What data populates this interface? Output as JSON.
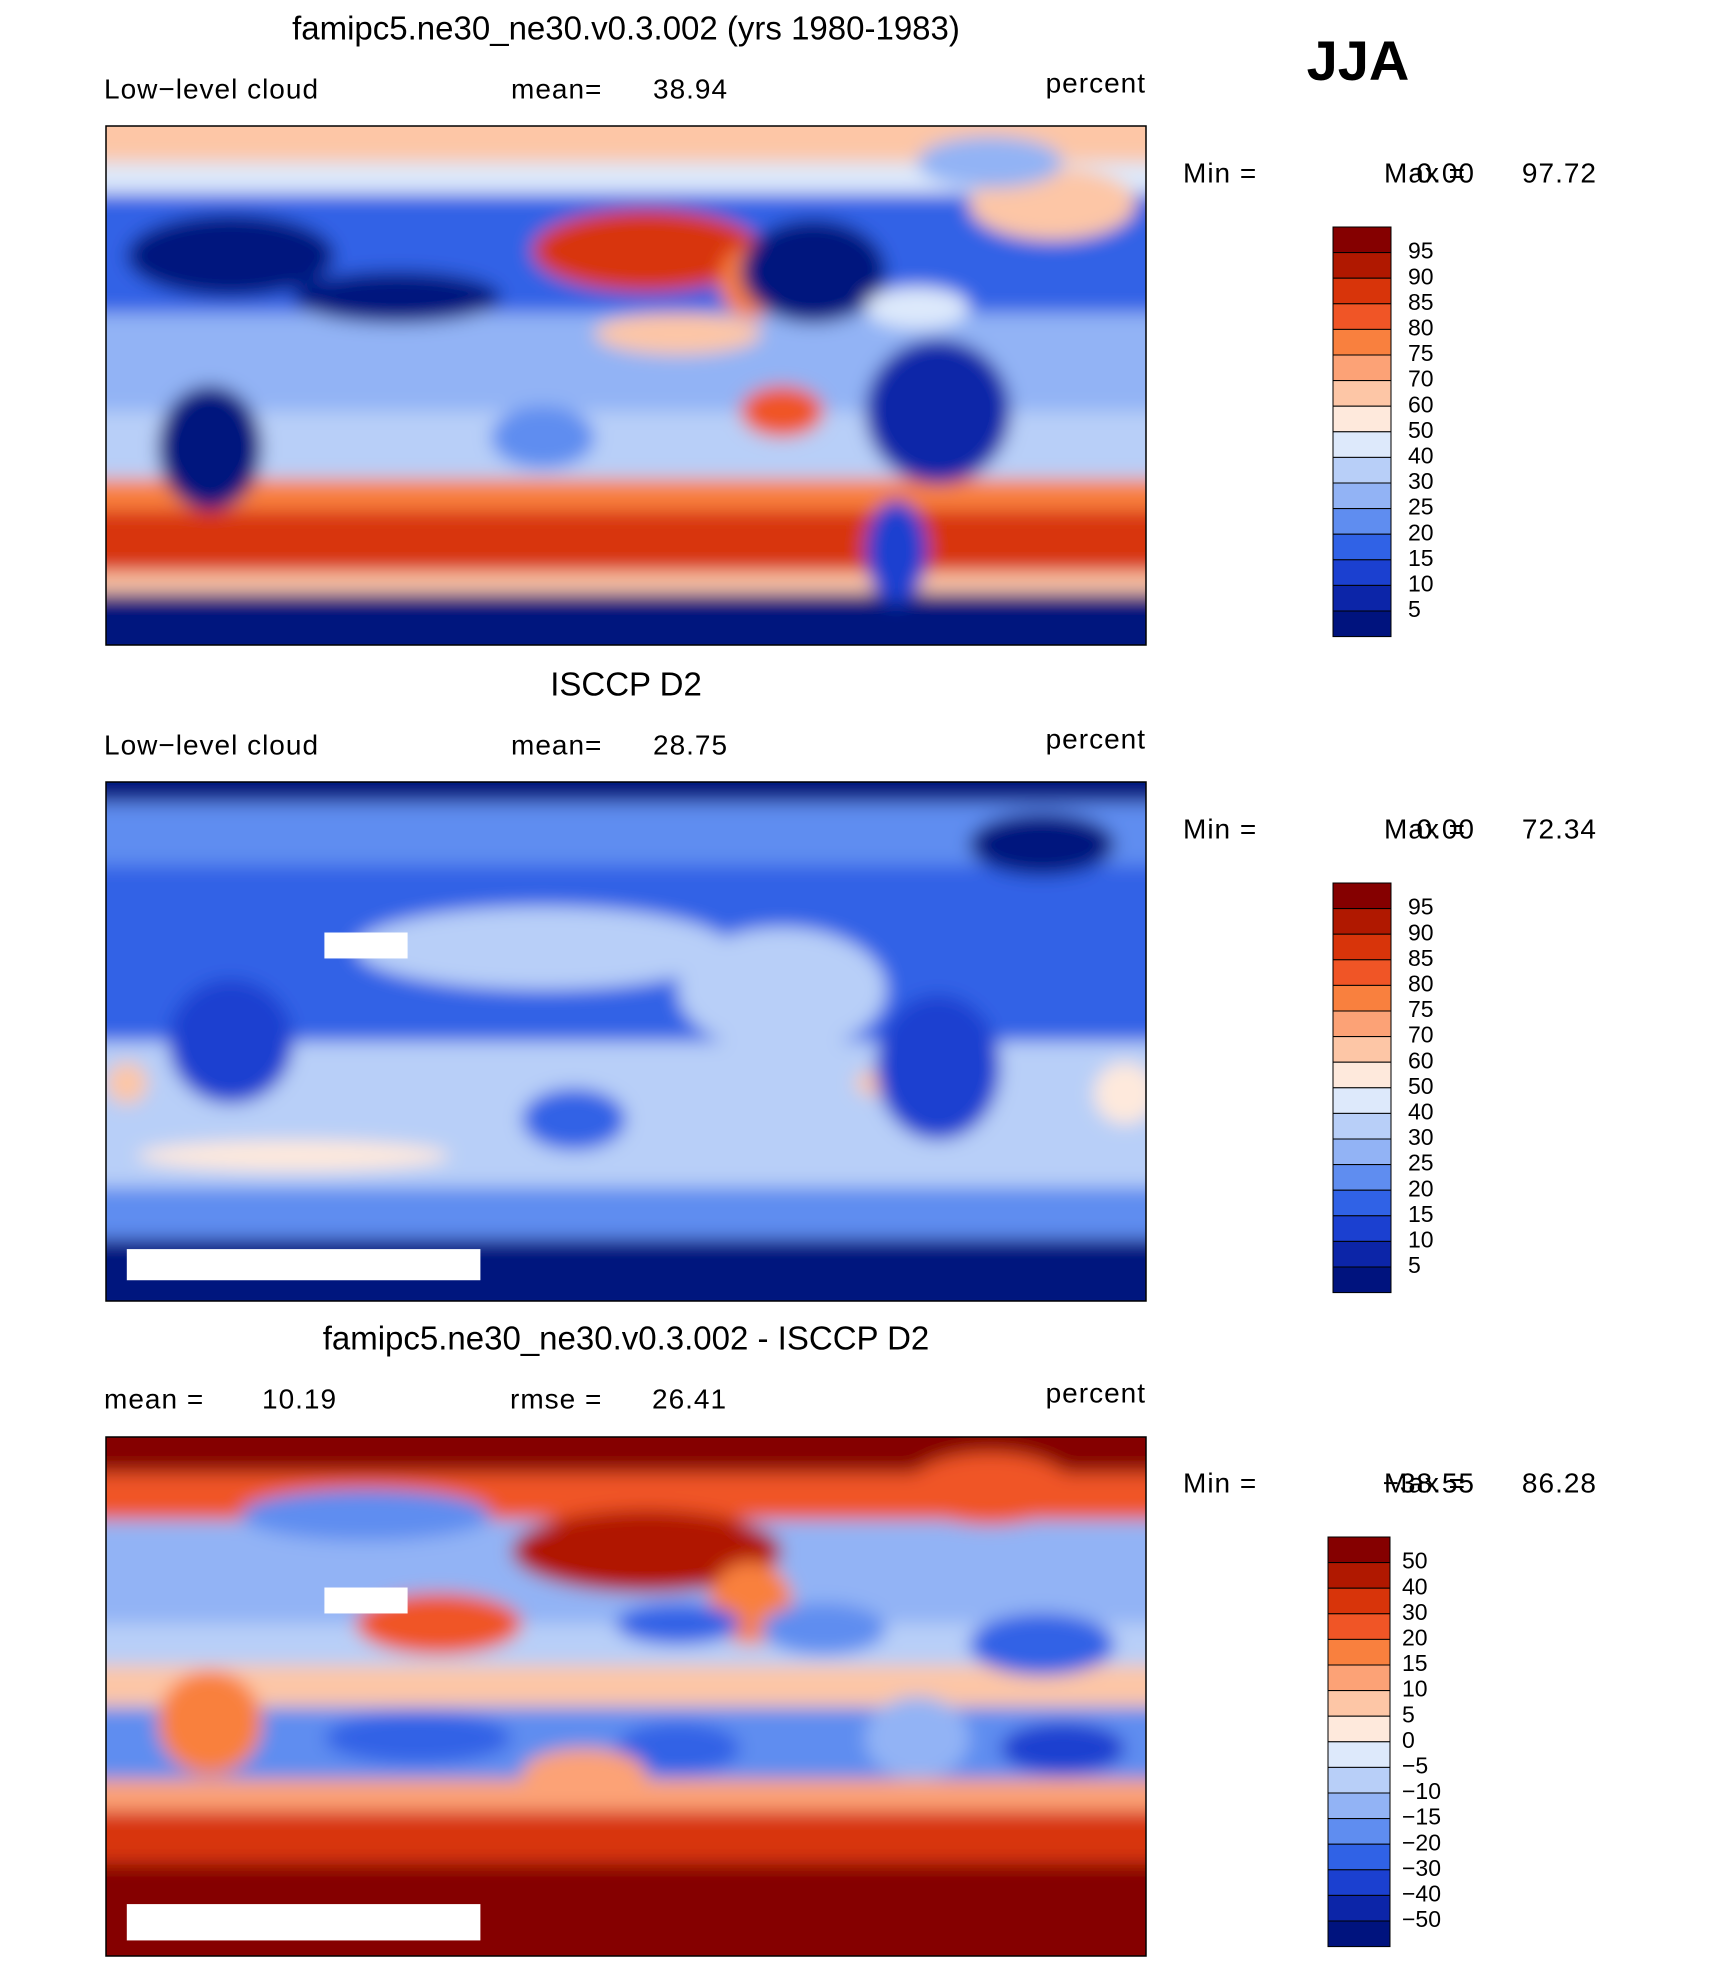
{
  "header": {
    "season": "JJA"
  },
  "panels": [
    {
      "title": "famipc5.ne30_ne30.v0.3.002 (yrs 1980-1983)",
      "field": "Low−level cloud",
      "stats": [
        {
          "label": "mean=",
          "value": "38.94"
        }
      ],
      "units": "percent",
      "min_label": "Min =",
      "min_value": "0.00",
      "max_label": "Max =",
      "max_value": "97.72",
      "colorbar_levels": [
        "95",
        "90",
        "85",
        "80",
        "75",
        "70",
        "60",
        "50",
        "40",
        "30",
        "25",
        "20",
        "15",
        "10",
        "5"
      ]
    },
    {
      "title": "ISCCP D2",
      "field": "Low−level cloud",
      "stats": [
        {
          "label": "mean=",
          "value": "28.75"
        }
      ],
      "units": "percent",
      "min_label": "Min =",
      "min_value": "0.00",
      "max_label": "Max =",
      "max_value": "72.34",
      "colorbar_levels": [
        "95",
        "90",
        "85",
        "80",
        "75",
        "70",
        "60",
        "50",
        "40",
        "30",
        "25",
        "20",
        "15",
        "10",
        "5"
      ]
    },
    {
      "title": "famipc5.ne30_ne30.v0.3.002 - ISCCP D2",
      "stats": [
        {
          "label": "mean =",
          "value": "10.19"
        },
        {
          "label": "rmse =",
          "value": "26.41"
        }
      ],
      "units": "percent",
      "min_label": "Min =",
      "min_value": "−38.55",
      "max_label": "Max =",
      "max_value": "86.28",
      "colorbar_levels": [
        "50",
        "40",
        "30",
        "20",
        "15",
        "10",
        "5",
        "0",
        "−5",
        "−10",
        "−15",
        "−20",
        "−30",
        "−40",
        "−50"
      ]
    }
  ]
}
